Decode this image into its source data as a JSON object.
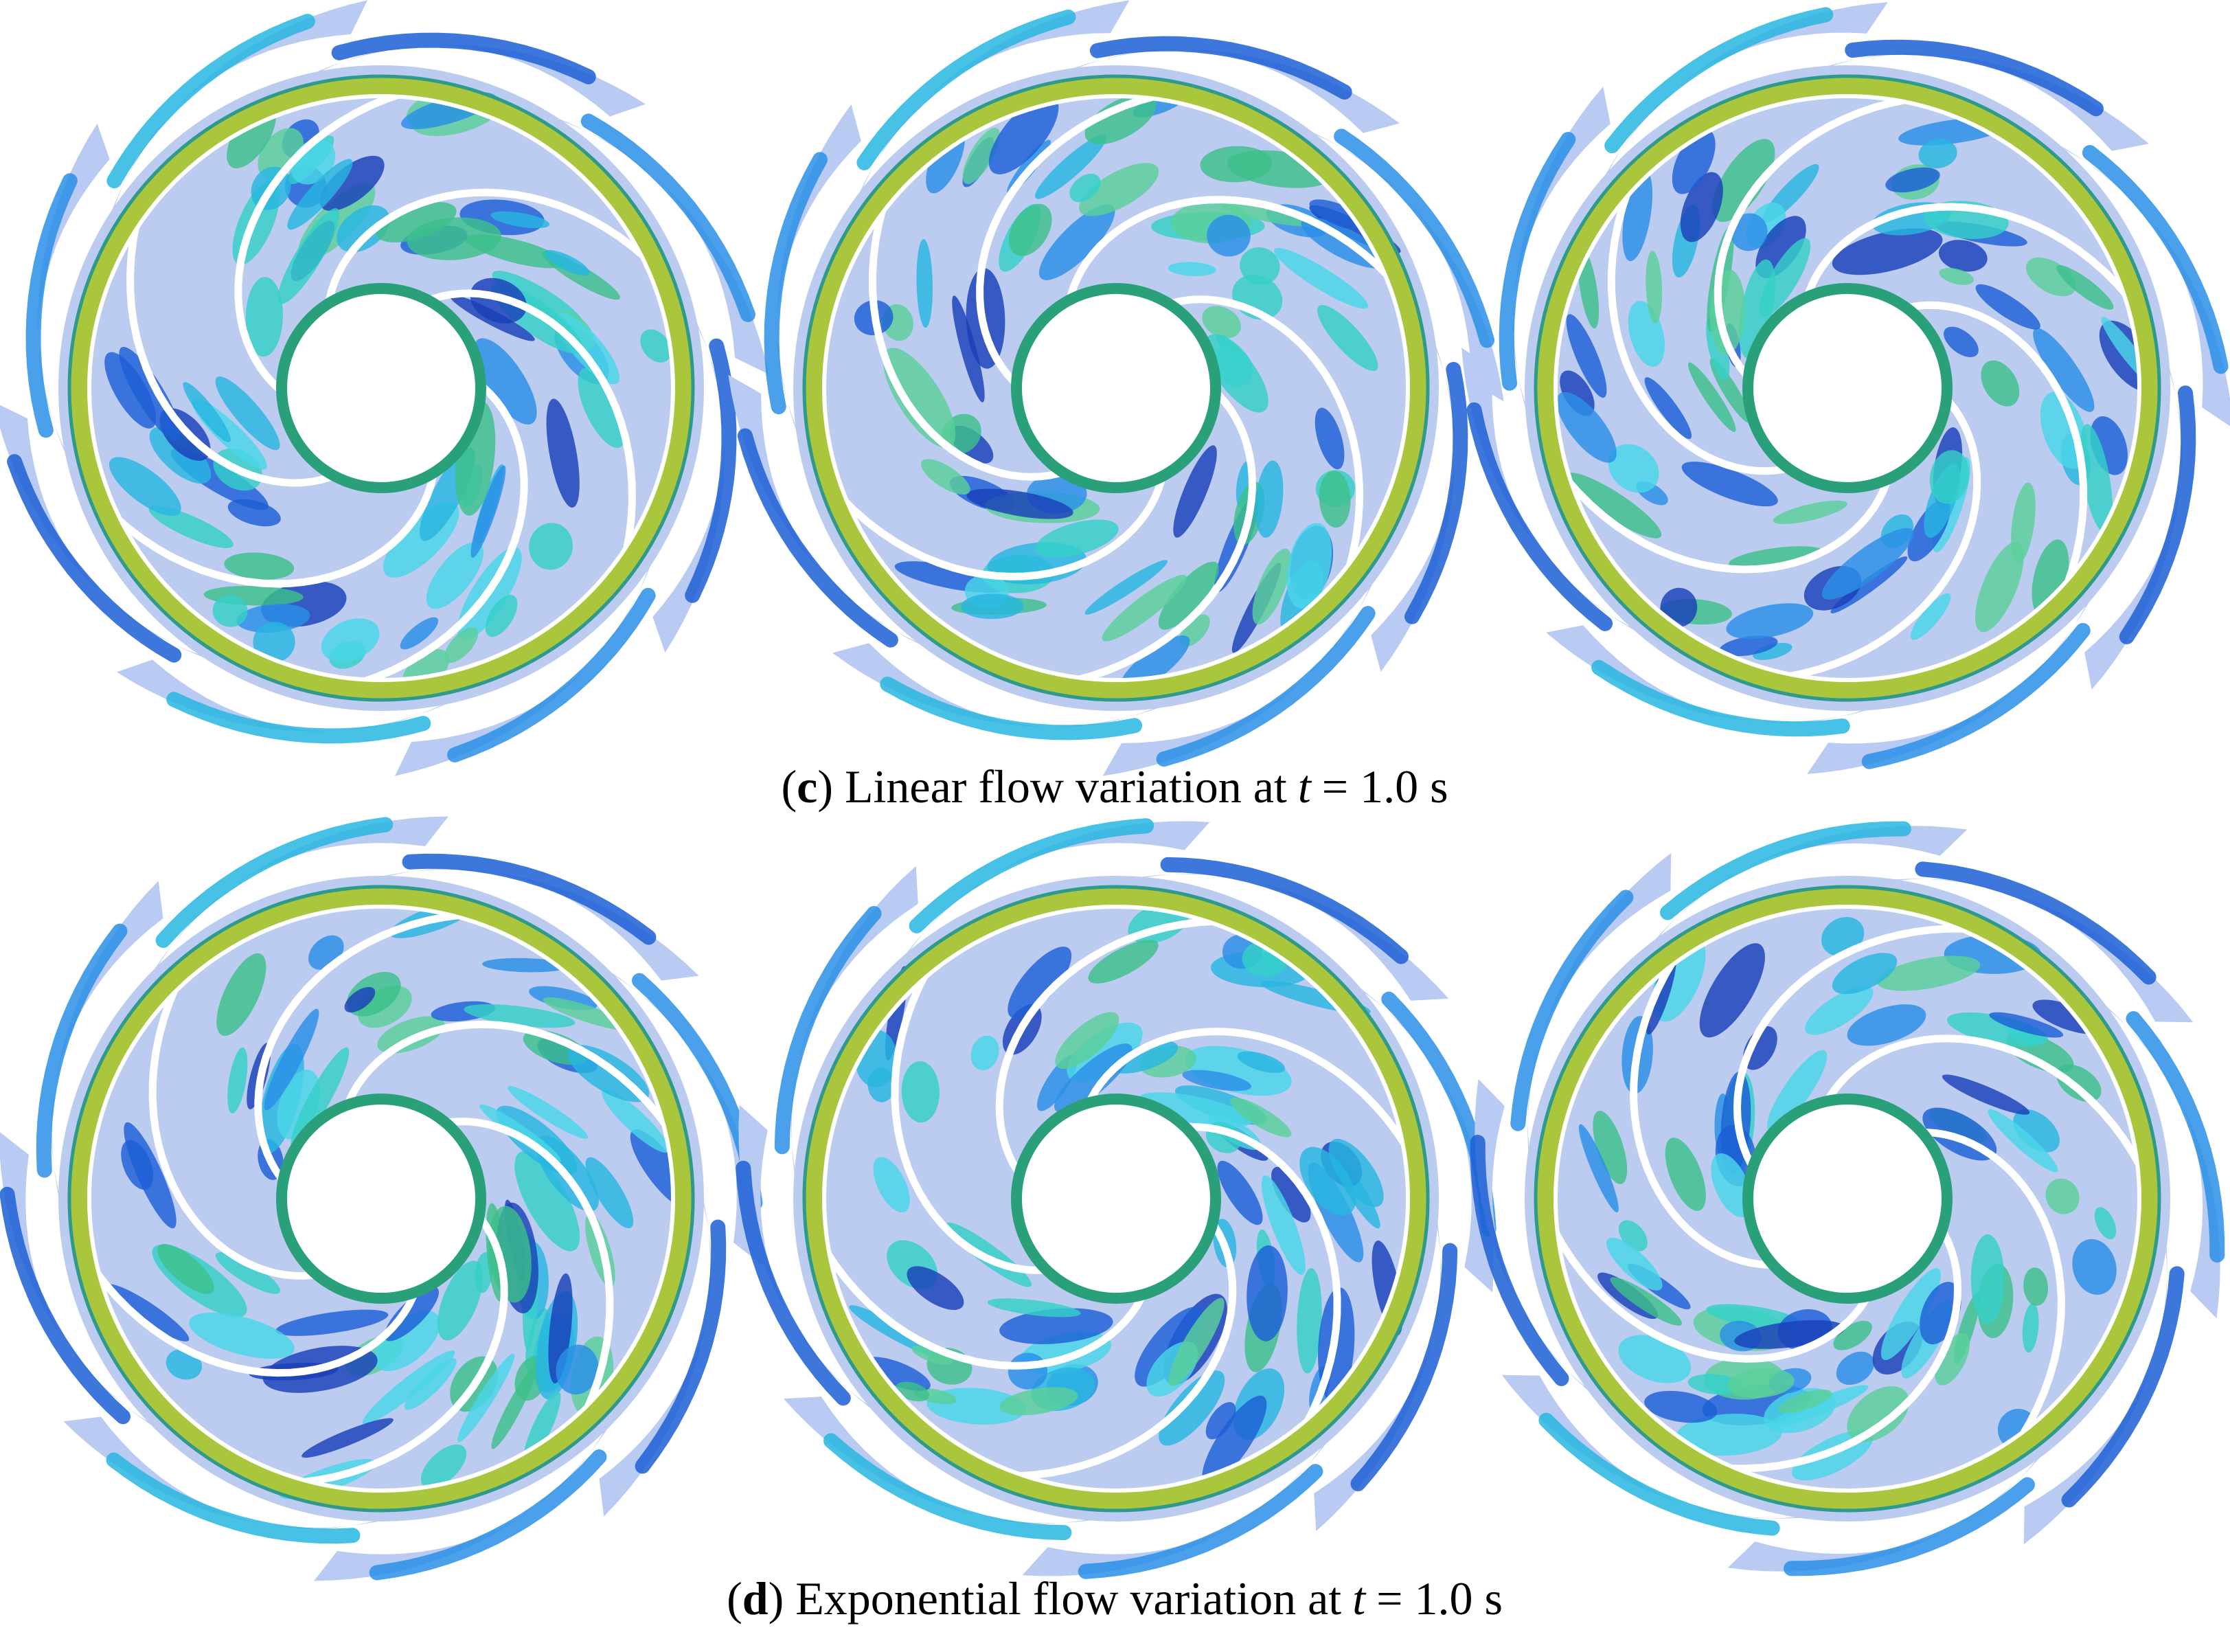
{
  "figure": {
    "rows": [
      {
        "caption": {
          "open": "(",
          "label": "c",
          "text": ") Linear flow variation at",
          "variable": "t",
          "value": "= 1.0 s"
        }
      },
      {
        "caption": {
          "open": "(",
          "label": "d",
          "text": ") Exponential flow variation at",
          "variable": "t",
          "value": "= 1.0 s"
        }
      }
    ]
  }
}
